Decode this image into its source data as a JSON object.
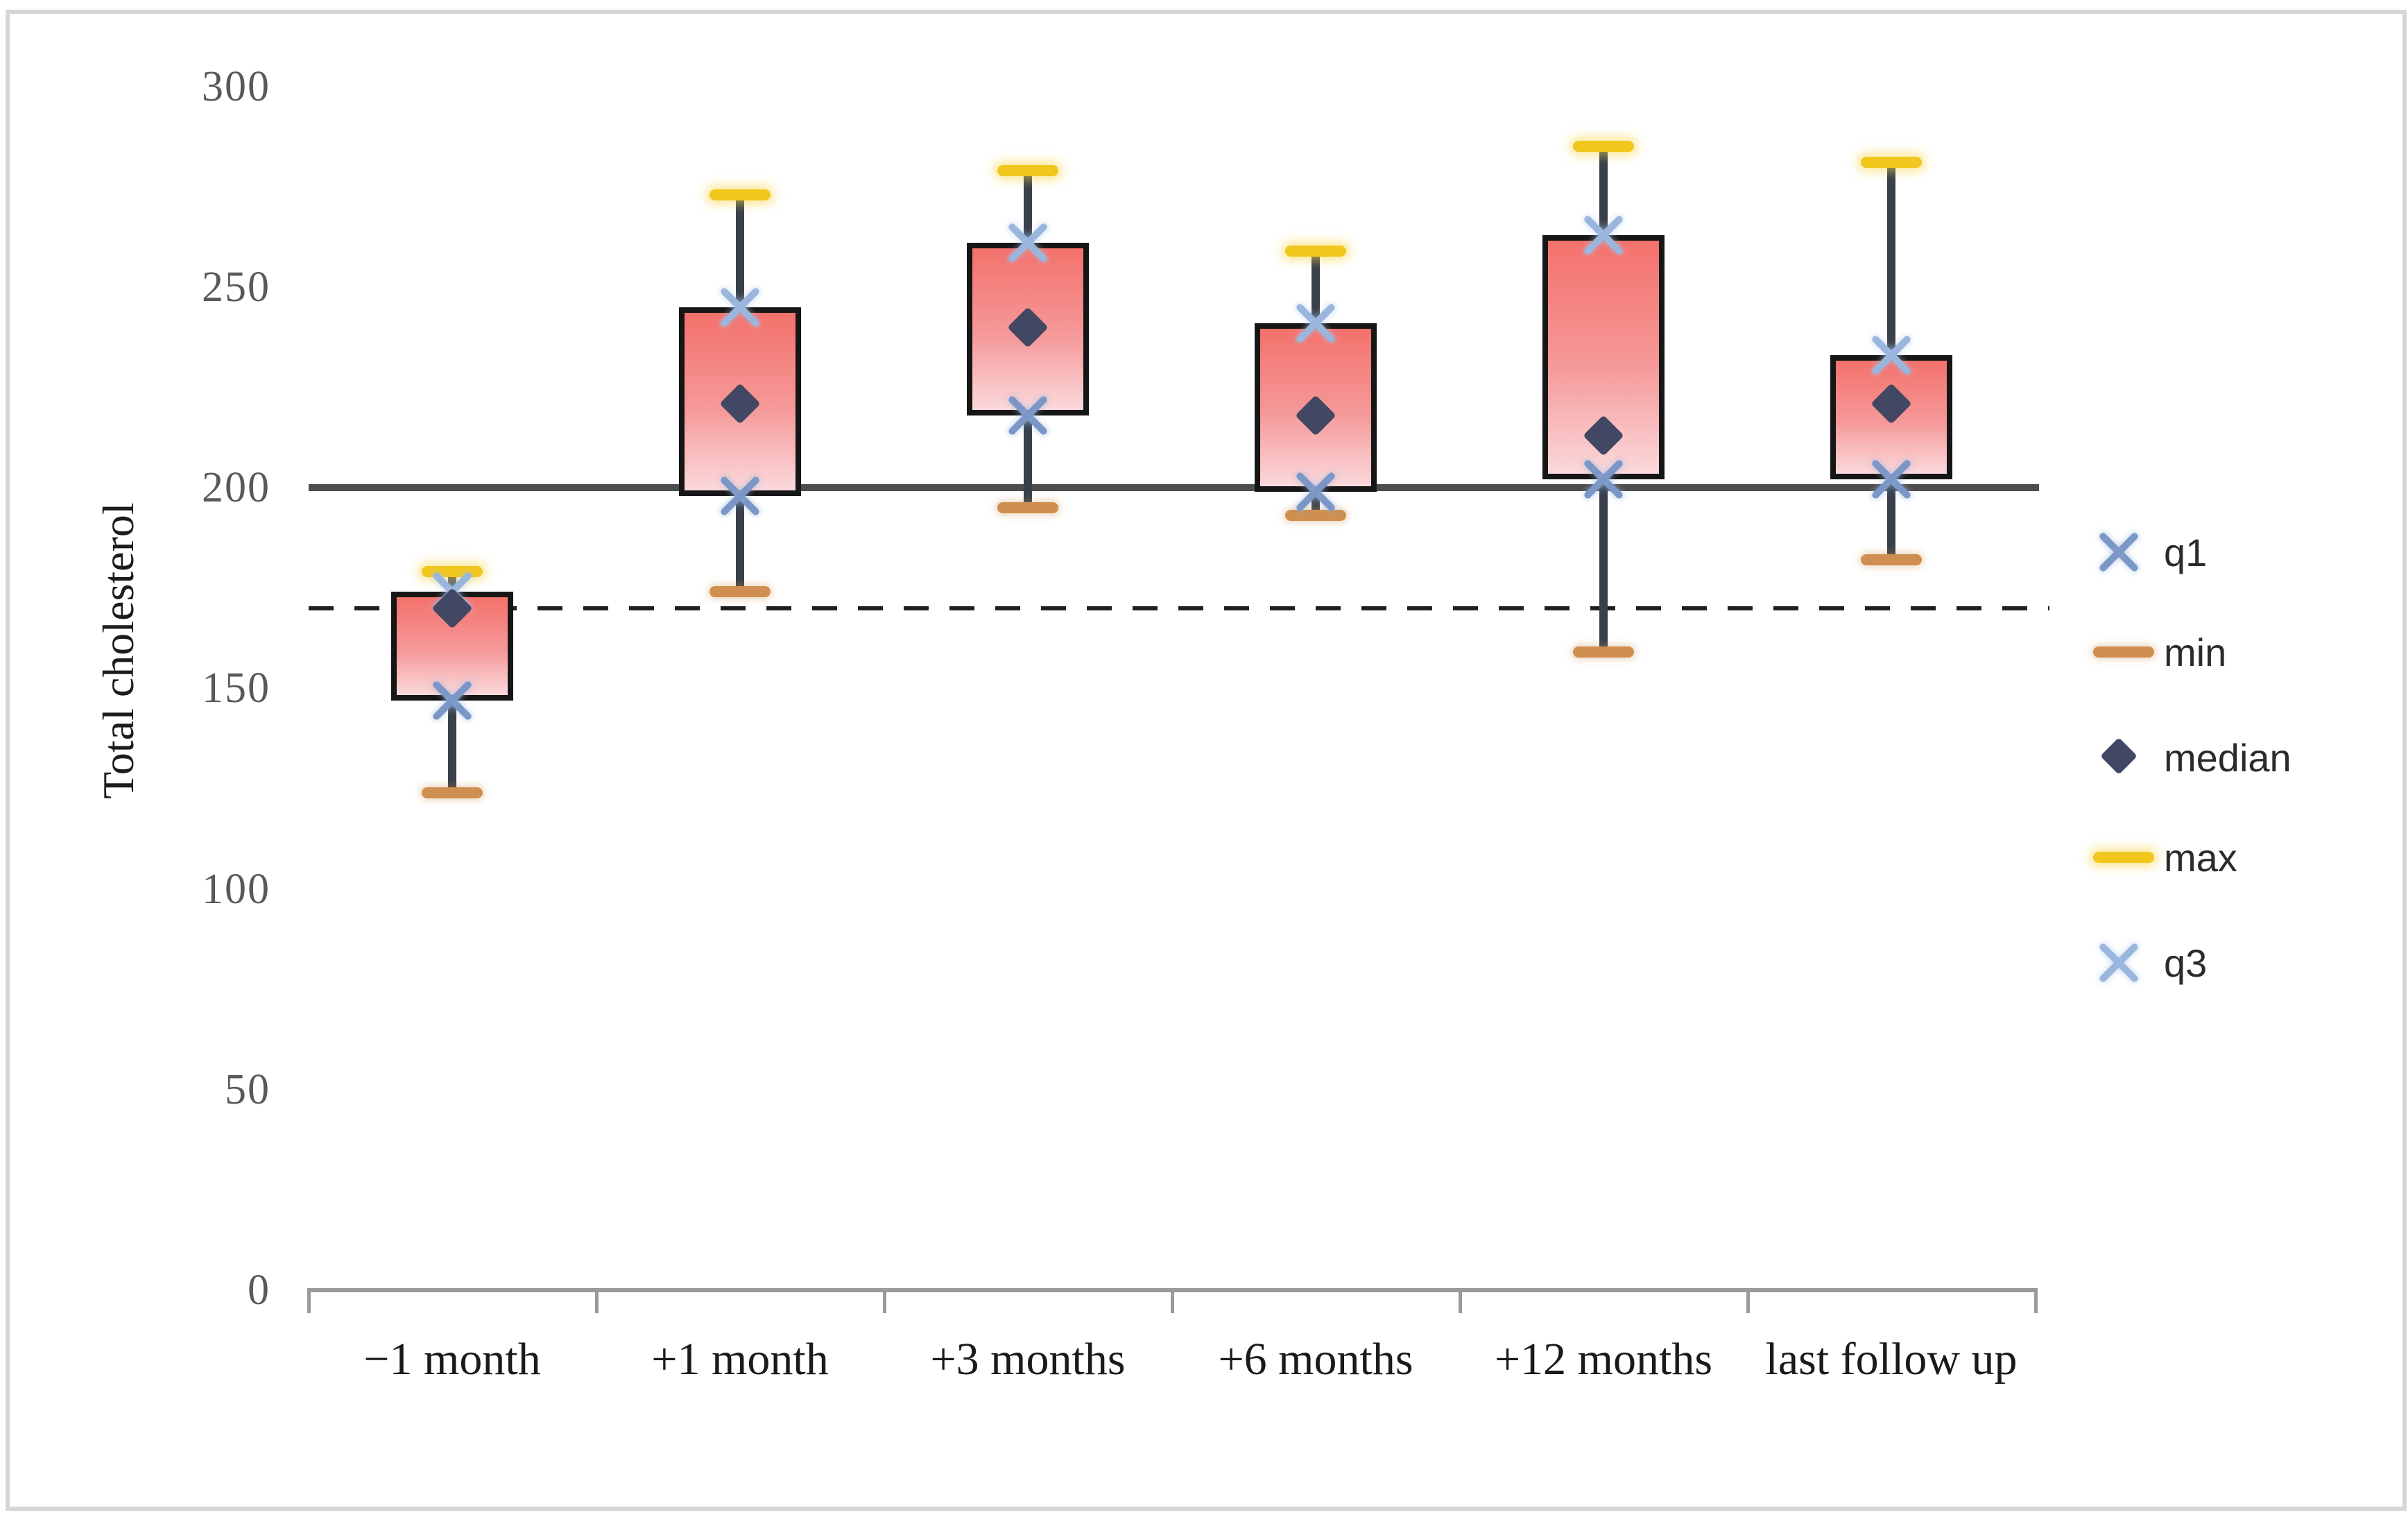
{
  "figure": {
    "background": "#ffffff",
    "border_color": "#d6d6d6"
  },
  "chart_data": {
    "type": "box",
    "title": "",
    "xlabel": "",
    "ylabel": "Total cholesterol",
    "categories": [
      "−1 month",
      "+1 month",
      "+3 months",
      "+6 months",
      "+12 months",
      "last follow up"
    ],
    "boxes": [
      {
        "category": "−1 month",
        "min": 124,
        "q1": 147,
        "median": 170,
        "q3": 174,
        "max": 179
      },
      {
        "category": "+1 month",
        "min": 174,
        "q1": 198,
        "median": 221,
        "q3": 245,
        "max": 273
      },
      {
        "category": "+3 months",
        "min": 195,
        "q1": 218,
        "median": 240,
        "q3": 261,
        "max": 279
      },
      {
        "category": "+6 months",
        "min": 193,
        "q1": 199,
        "median": 218,
        "q3": 241,
        "max": 259
      },
      {
        "category": "+12 months",
        "min": 159,
        "q1": 202,
        "median": 213,
        "q3": 263,
        "max": 285
      },
      {
        "category": "last follow up",
        "min": 182,
        "q1": 202,
        "median": 221,
        "q3": 233,
        "max": 281
      }
    ],
    "yticks": [
      0,
      50,
      100,
      150,
      200,
      250,
      300
    ],
    "ylim": [
      0,
      310
    ],
    "grid": false,
    "legend_position": "right",
    "legend": [
      {
        "label": "q1",
        "marker": "x-cross",
        "color": "#7b97c7"
      },
      {
        "label": "min",
        "marker": "dash",
        "color": "#cf8f50"
      },
      {
        "label": "median",
        "marker": "diamond",
        "color": "#424763"
      },
      {
        "label": "max",
        "marker": "dash",
        "color": "#f2c71d"
      },
      {
        "label": "q3",
        "marker": "x-cross",
        "color": "#9ab6dc"
      }
    ],
    "reference_lines": [
      {
        "value": 200,
        "style": "solid",
        "color": "#4d4d4d"
      },
      {
        "value": 170,
        "style": "dashed",
        "color": "#1f1f1f"
      }
    ]
  },
  "colors": {
    "box_fill_top": "#f4716b",
    "box_fill_bottom": "#fbd9dc",
    "box_border": "#161616",
    "whisker": "#39404b",
    "axis": "#9a9a9a",
    "ytick_text": "#595959",
    "xtick_text": "#1a1a1a"
  }
}
